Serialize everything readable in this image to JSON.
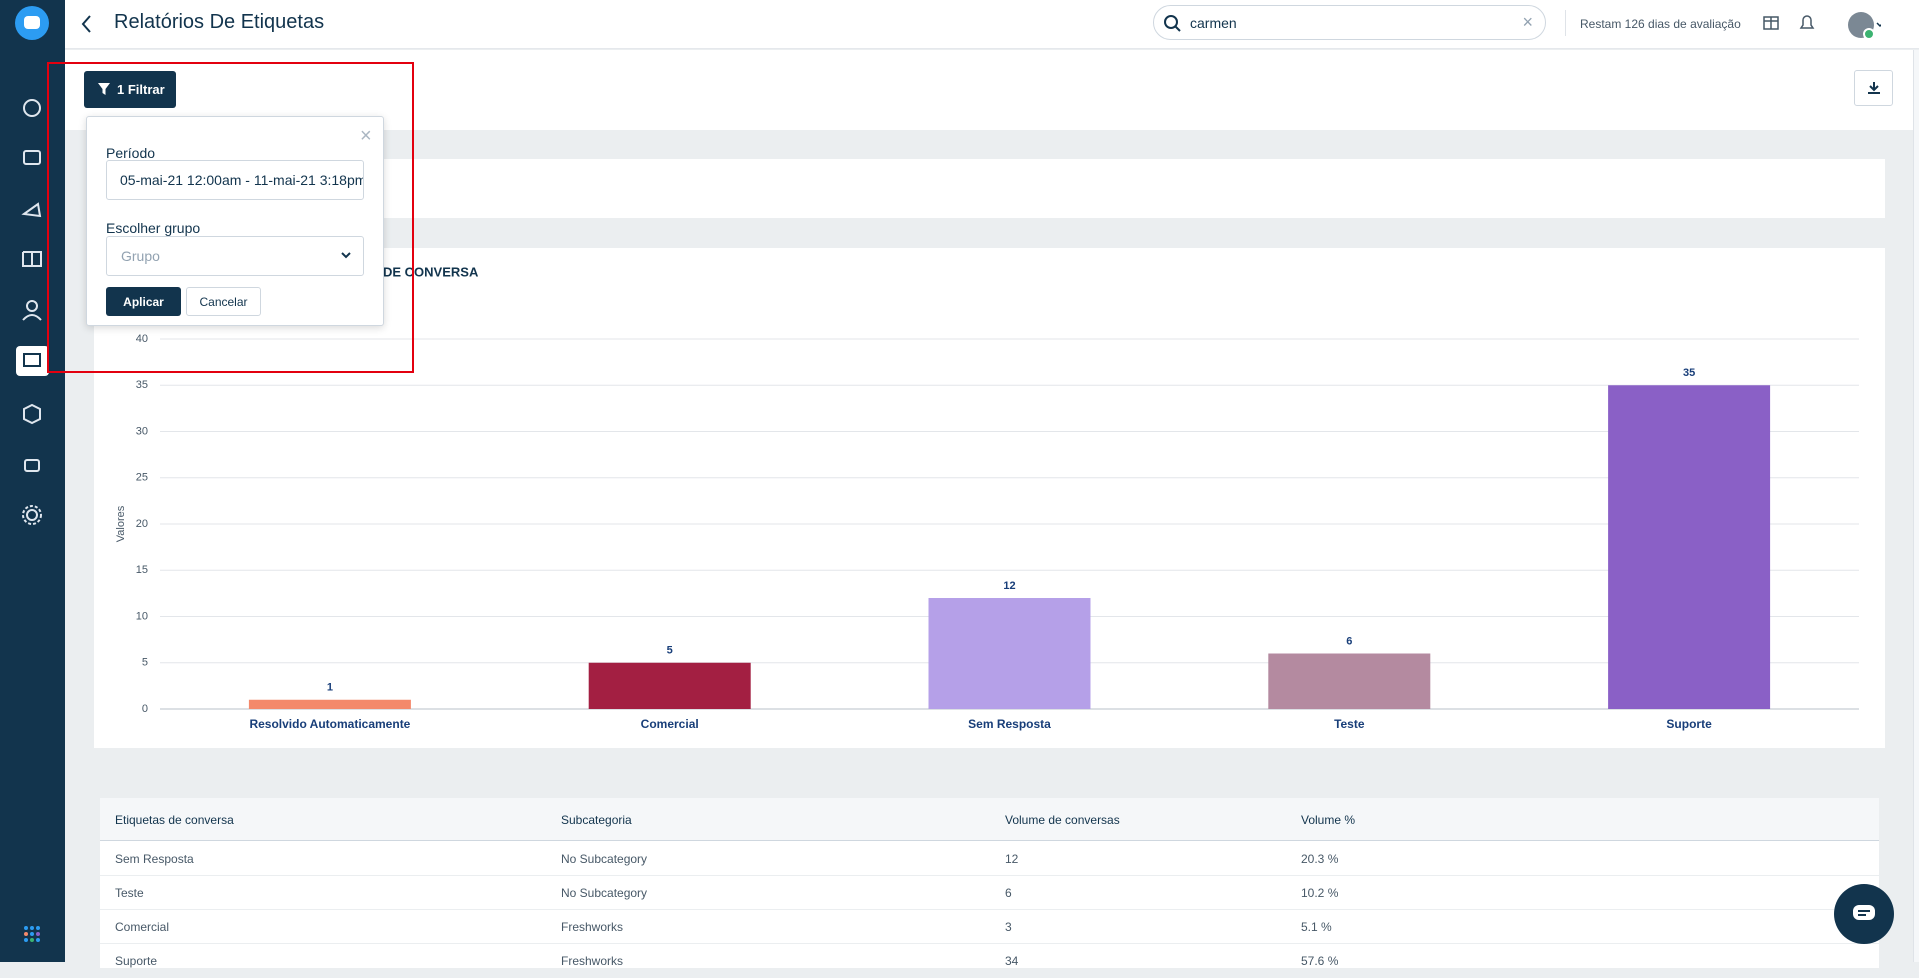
{
  "header": {
    "title": "Relatórios De Etiquetas",
    "search": "carmen",
    "trial": "Restam 126 dias de avaliação"
  },
  "filter": {
    "button": "1 Filtrar",
    "period_label": "Período",
    "period_value": "05-mai-21 12:00am - 11-mai-21 3:18pm",
    "group_label": "Escolher grupo",
    "group_placeholder": "Grupo",
    "apply": "Aplicar",
    "cancel": "Cancelar"
  },
  "chart_data": {
    "type": "bar",
    "title": "DE CONVERSA",
    "y_label": "Valores",
    "categories": [
      "Resolvido Automaticamente",
      "Comercial",
      "Sem Resposta",
      "Teste",
      "Suporte"
    ],
    "values": [
      1,
      5,
      12,
      6,
      35
    ],
    "colors": [
      "#f4896b",
      "#a31f42",
      "#b5a0e8",
      "#b48aa0",
      "#8a60c6"
    ],
    "ylim": [
      0,
      40
    ],
    "yticks": [
      0,
      5,
      10,
      15,
      20,
      25,
      30,
      35,
      40
    ],
    "grid": true
  },
  "table": {
    "columns": [
      "Etiquetas de conversa",
      "Subcategoria",
      "Volume de conversas",
      "Volume %"
    ],
    "rows": [
      [
        "Sem Resposta",
        "No Subcategory",
        "12",
        "20.3 %"
      ],
      [
        "Teste",
        "No Subcategory",
        "6",
        "10.2 %"
      ],
      [
        "Comercial",
        "Freshworks",
        "3",
        "5.1 %"
      ],
      [
        "Suporte",
        "Freshworks",
        "34",
        "57.6 %"
      ]
    ]
  }
}
